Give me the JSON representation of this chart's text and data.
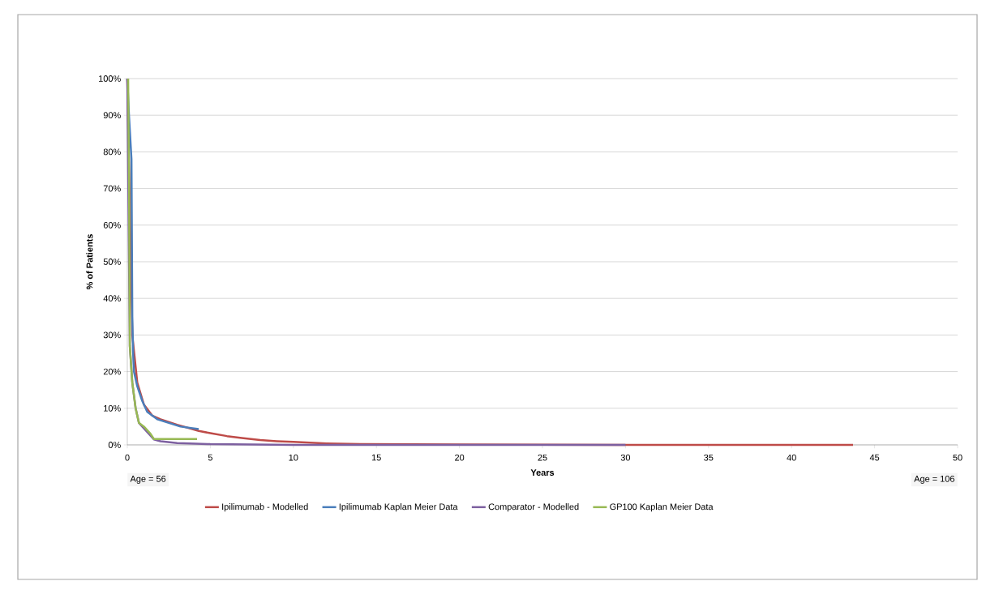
{
  "chart_data": {
    "type": "line",
    "xlabel": "Years",
    "ylabel": "% of Patients",
    "annotations": [
      "Age = 56",
      "Age = 106"
    ],
    "xlim": [
      0,
      50
    ],
    "xticks": [
      0,
      5,
      10,
      15,
      20,
      25,
      30,
      35,
      40,
      45,
      50
    ],
    "ylim": [
      0,
      100
    ],
    "yticks": [
      {
        "value": 0,
        "label": "0%"
      },
      {
        "value": 10,
        "label": "10%"
      },
      {
        "value": 20,
        "label": "20%"
      },
      {
        "value": 30,
        "label": "30%"
      },
      {
        "value": 40,
        "label": "40%"
      },
      {
        "value": 50,
        "label": "50%"
      },
      {
        "value": 60,
        "label": "60%"
      },
      {
        "value": 70,
        "label": "70%"
      },
      {
        "value": 80,
        "label": "80%"
      },
      {
        "value": 90,
        "label": "90%"
      },
      {
        "value": 100,
        "label": "100%"
      }
    ],
    "grid": "y",
    "legend": "bottom",
    "marker": "none",
    "line_style": "solid",
    "series": [
      {
        "name": "Ipilimumab - Modelled",
        "color": "#be4b48",
        "x": [
          0,
          0.3,
          0.6,
          1,
          1.5,
          2,
          3,
          4.3,
          5,
          6,
          7,
          8,
          9,
          10,
          12,
          14,
          20,
          30,
          43.7
        ],
        "values": [
          100,
          30,
          17,
          11,
          8,
          7,
          5.5,
          3.8,
          3.2,
          2.4,
          1.8,
          1.3,
          1,
          0.8,
          0.4,
          0.2,
          0.1,
          0,
          0
        ]
      },
      {
        "name": "Ipilimumab Kaplan Meier Data",
        "color": "#4a7ebb",
        "x": [
          0,
          0.1,
          0.25,
          0.3,
          0.35,
          0.4,
          0.5,
          0.6,
          0.9,
          1.2,
          1.8,
          2.5,
          3.2,
          4.3
        ],
        "values": [
          100,
          90,
          78,
          35,
          25,
          20,
          18,
          16,
          12,
          9,
          7,
          6,
          5,
          4.3
        ]
      },
      {
        "name": "Comparator - Modelled",
        "color": "#7d60a0",
        "x": [
          0,
          0.15,
          0.3,
          0.5,
          0.7,
          1,
          1.6,
          2,
          3,
          5,
          10,
          30
        ],
        "values": [
          100,
          27,
          17,
          10,
          6,
          4.5,
          1.5,
          1,
          0.5,
          0.2,
          0,
          0
        ]
      },
      {
        "name": "GP100 Kaplan Meier Data",
        "color": "#98b954",
        "x": [
          0.05,
          0.1,
          0.15,
          0.3,
          0.5,
          0.7,
          1,
          1.2,
          1.4,
          1.6,
          4.2
        ],
        "values": [
          100,
          75,
          27,
          17,
          10,
          6,
          5,
          4,
          3,
          1.6,
          1.6
        ]
      }
    ]
  }
}
